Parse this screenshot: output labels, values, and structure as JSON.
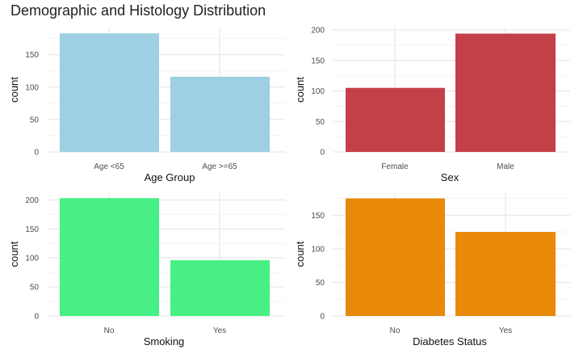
{
  "title": "Demographic and Histology Distribution",
  "chart_data": [
    {
      "type": "bar",
      "categories": [
        "Age <65",
        "Age >=65"
      ],
      "values": [
        183,
        116
      ],
      "xlabel": "Age Group",
      "ylabel": "count",
      "yticks": [
        0,
        50,
        100,
        150
      ],
      "ylim": [
        0,
        192
      ],
      "color": "#9ecfe2",
      "grid": true
    },
    {
      "type": "bar",
      "categories": [
        "Female",
        "Male"
      ],
      "values": [
        105,
        194
      ],
      "xlabel": "Sex",
      "ylabel": "count",
      "yticks": [
        0,
        50,
        100,
        150,
        200
      ],
      "ylim": [
        0,
        204
      ],
      "color": "#c44048",
      "grid": true
    },
    {
      "type": "bar",
      "categories": [
        "No",
        "Yes"
      ],
      "values": [
        203,
        96
      ],
      "xlabel": "Smoking",
      "ylabel": "count",
      "yticks": [
        0,
        50,
        100,
        150,
        200
      ],
      "ylim": [
        0,
        213
      ],
      "color": "#47ef84",
      "grid": true
    },
    {
      "type": "bar",
      "categories": [
        "No",
        "Yes"
      ],
      "values": [
        175,
        125
      ],
      "xlabel": "Diabetes Status",
      "ylabel": "count",
      "yticks": [
        0,
        50,
        100,
        150
      ],
      "ylim": [
        0,
        184
      ],
      "color": "#e8890a",
      "grid": true
    }
  ]
}
